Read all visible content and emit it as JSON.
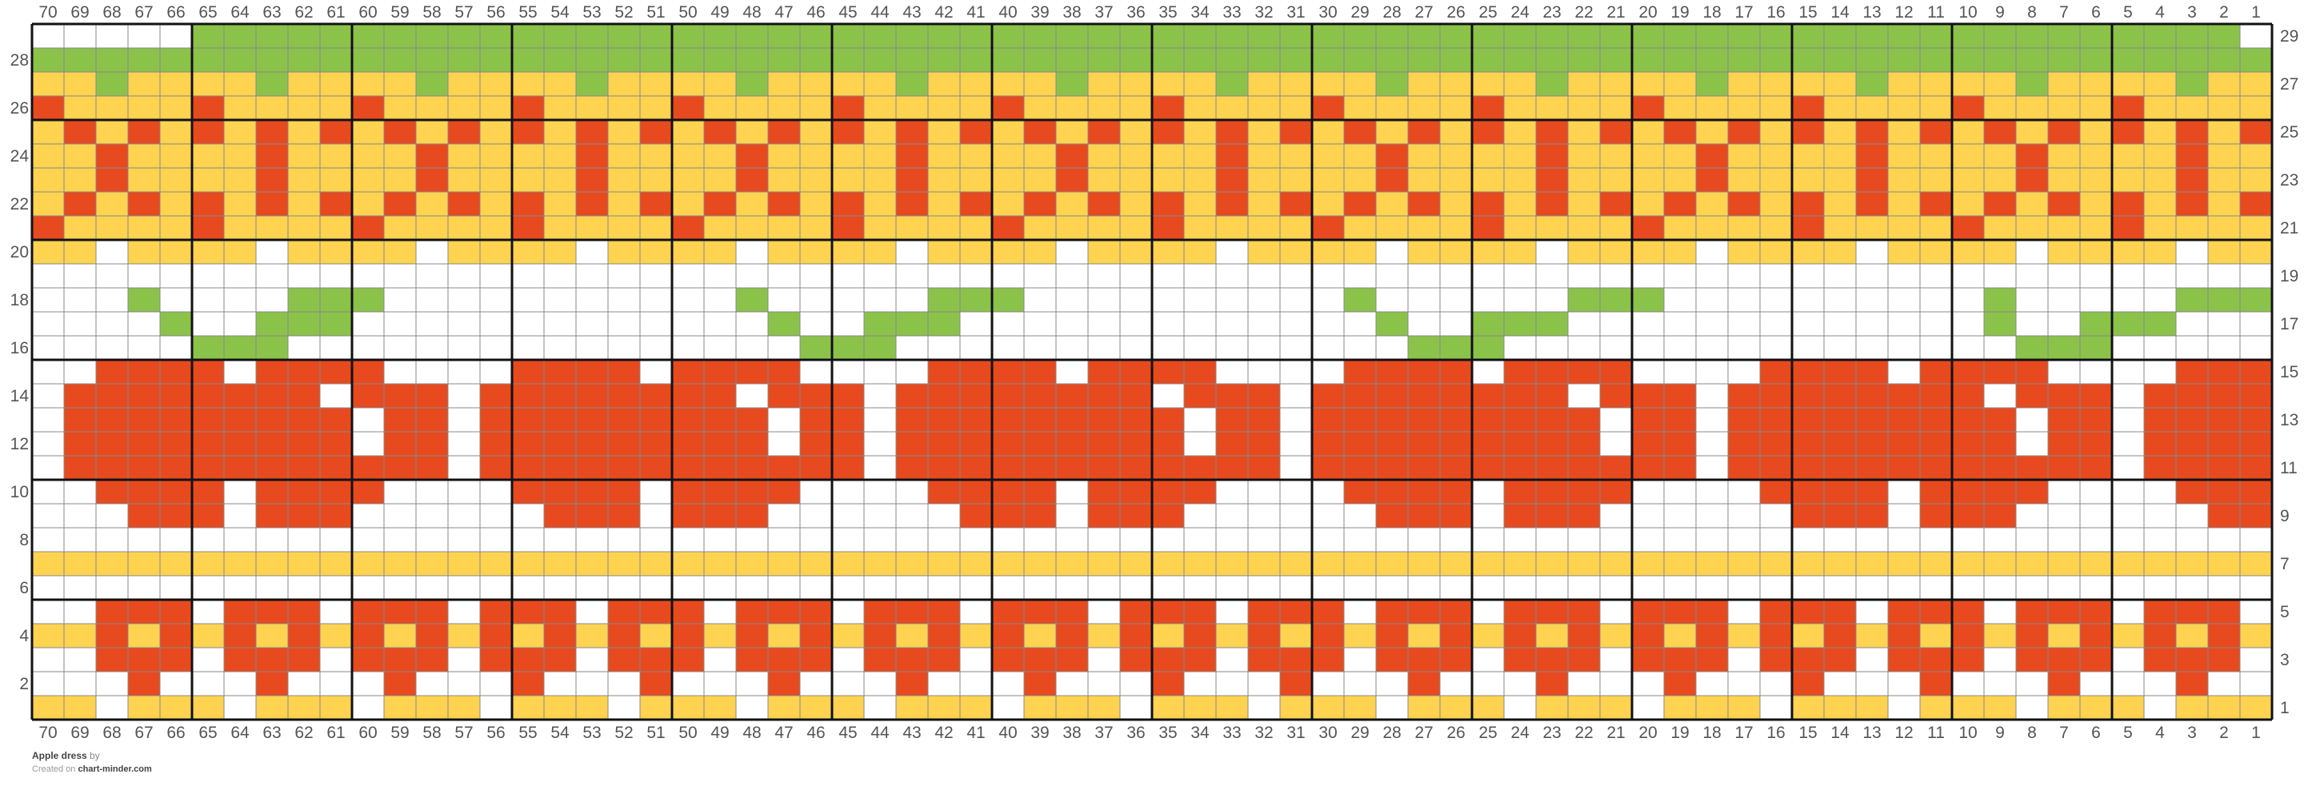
{
  "chart": {
    "columns": 70,
    "rows": 29,
    "colors": {
      "Y": "#fdd34f",
      "R": "#e74a1f",
      "G": "#8bc34a",
      "W": "#ffffff",
      "grid": "#888888",
      "major": "#111111"
    },
    "grid_rows": [
      "WWWWWGGGGGGGGGGGGGGGGGGGGGGGGGGGGGGGGGGGGGGGGGGGGGGGGGGGGGGGGGGGGGGGGW",
      "GGGGGGGGGGGGGGGGGGGGGGGGGGGGGGGGGGGGGGGGGGGGGGGGGGGGGGGGGGGGGGGGGGGGGG",
      "YYGYYYYGYYYYGYYYYGYYYYGYYYYGYYYYGYYYYGYYYYGYYYYGYYYYGYYYYGYYYYGYYYYGYY",
      "RYYYYRYYYYRYYYYRYYYYRYYYYRYYYYRYYYYRYYYYRYYYYRYYYYRYYYYRYYYYRYYYYRYYYY",
      "YRYRYRYRYRYRYRYRYRYRYRYRYRYRYRYRYRYRYRYRYRYRYRYRYRYRYRYRYRYRYRYRYRYRYR",
      "YYRYYYYRYYYYRYYYYRYYYYRYYYYRYYYYRYYYYRYYYYRYYYYRYYYYRYYYYRYYYYRYYYYRYY",
      "YYRYYYYRYYYYRYYYYRYYYYRYYYYRYYYYRYYYYRYYYYRYYYYRYYYYRYYYYRYYYYRYYYYRYY",
      "YRYRYRYRYRYRYRYRYRYRYRYRYRYRYRYRYRYRYRYRYRYRYRYRYRYRYRYRYRYRYRYRYRYRYR",
      "RYYYYRYYYYRYYYYRYYYYRYYYYRYYYYRYYYYRYYYYRYYYYRYYYYRYYYYRYYYYRYYYYRYYYY",
      "YYWYYYYWYYYYWYYYYWYYYYWYYYYWYYYYWYYYYWYYYYWYYYYWYYYYWYYYYWYYYYWYYYYWYY",
      "WWWWWWWWWWWWWWWWWWWWWWWWWWWWWWWWWWWWWWWWWWWWWWWWWWWWWWWWWWWWWWWWWWWWWW",
      "WWWGWWWWGGGWWWWWWWWWWWGWWWWWGGGWWWWWWWWWWGWWWWWWGGGWWWWWWWWWWGWWWWWGGG",
      "WWWWGWWGGGWWWWWWWWWWWWWGWWGGGWWWWWWWWWWWWWGWWGGGWWWWWWWWWWWWWGWWGGGWWW",
      "WWWWWGGGWWWWWWWWWWWWWWWWGGGWWWWWWWWWWWWWWWWGGGWWWWWWWWWWWWWWWWGGGWWWWW",
      "WWRRRRWRRRRWWWWRRRRWRRRRWWWWRRRRWRRRRWWWWRRRRWRRRRWWWWRRRRWRRRRWWWWRRR",
      "WRRRRRRRRWRRRWRRRRRRRRWRRRWRRRRRRRRWRRRWRRRRRRRRWRRRWRRRRRRRRWRRRWRRRR",
      "WRRRRRRRRRWRRWRRRRRRRRRWRRWRRRRRRRRRWRRWRRRRRRRRRWRRWRRRRRRRRRWRRWRRRR",
      "WRRRRRRRRRWRRWRRRRRRRRRWRRWRRRRRRRRRWRRWRRRRRRRRRWRRWRRRRRRRRRWRRWRRRR",
      "WRRRRRRRRRRRRWRRRRRRRRRRRRWRRRRRRRRRRRRWRRRRRRRRRRRRWRRRRRRRRRRRRWRRRR",
      "WWRRRRWRRRRWWWWRRRRWRRRRWWWWRRRRWRRRRWWWWRRRRWRRRRWWWWRRRRWRRRRWWWWRRR",
      "WWWRRRWRRRWWWWWWRRRWRRRWWWWWWRRRWRRRWWWWWWRRRWRRRWWWWWWRRRWRRRWWWWWWRR",
      "WWWWWWWWWWWWWWWWWWWWWWWWWWWWWWWWWWWWWWWWWWWWWWWWWWWWWWWWWWWWWWWWWWWWWW",
      "YYYYYYYYYYYYYYYYYYYYYYYYYYYYYYYYYYYYYYYYYYYYYYYYYYYYYYYYYYYYYYYYYYYYYY",
      "WWWWWWWWWWWWWWWWWWWWWWWWWWWWWWWWWWWWWWWWWWWWWWWWWWWWWWWWWWWWWWWWWWWWWW",
      "WWRRRWRRRWRRRWRRRWRRRWRRRWRRRWRRRWRRRWRRRWRRRWRRRWRRRWRRRWRRRWRRRWRRRW",
      "YYRYRYRYRYRYRYRYRYRYRYRYRYRYRYRYRYRYRYRYRYRYRYRYRYRYRYRYRYRYRYRYRYRYRY",
      "WWRRRWRRRWRRRWRRRWRRRWRRRWRRRWRRRWRRRWRRRWRRRWRRRWRRRWRRRWRRRWRRRWRRRW",
      "WWWRWWWRWWWRWWWRWWWRWWWRWWWRWWWRWWWRWWWRWWWRWWWRWWWRWWWRWWWRWWWRWWWRWW",
      "YYWYYYWYYYWYYYWYYYWYYYWYYYWYYYWYYYWYYYWYYYWYYYWYYYWYYYWYYYWYYYWYYYWYYY"
    ],
    "top_labels_start": 70,
    "right_labels": [
      "29",
      "27",
      "25",
      "23",
      "21",
      "19",
      "17",
      "15",
      "13",
      "11",
      "9",
      "7",
      "5",
      "3",
      "1"
    ],
    "left_labels": [
      "28",
      "26",
      "24",
      "22",
      "20",
      "18",
      "16",
      "14",
      "12",
      "10",
      "8",
      "6",
      "4",
      "2"
    ]
  },
  "footer": {
    "title": "Apple dress",
    "by": "by",
    "created_prefix": "Created on",
    "site": "chart-minder.com"
  }
}
